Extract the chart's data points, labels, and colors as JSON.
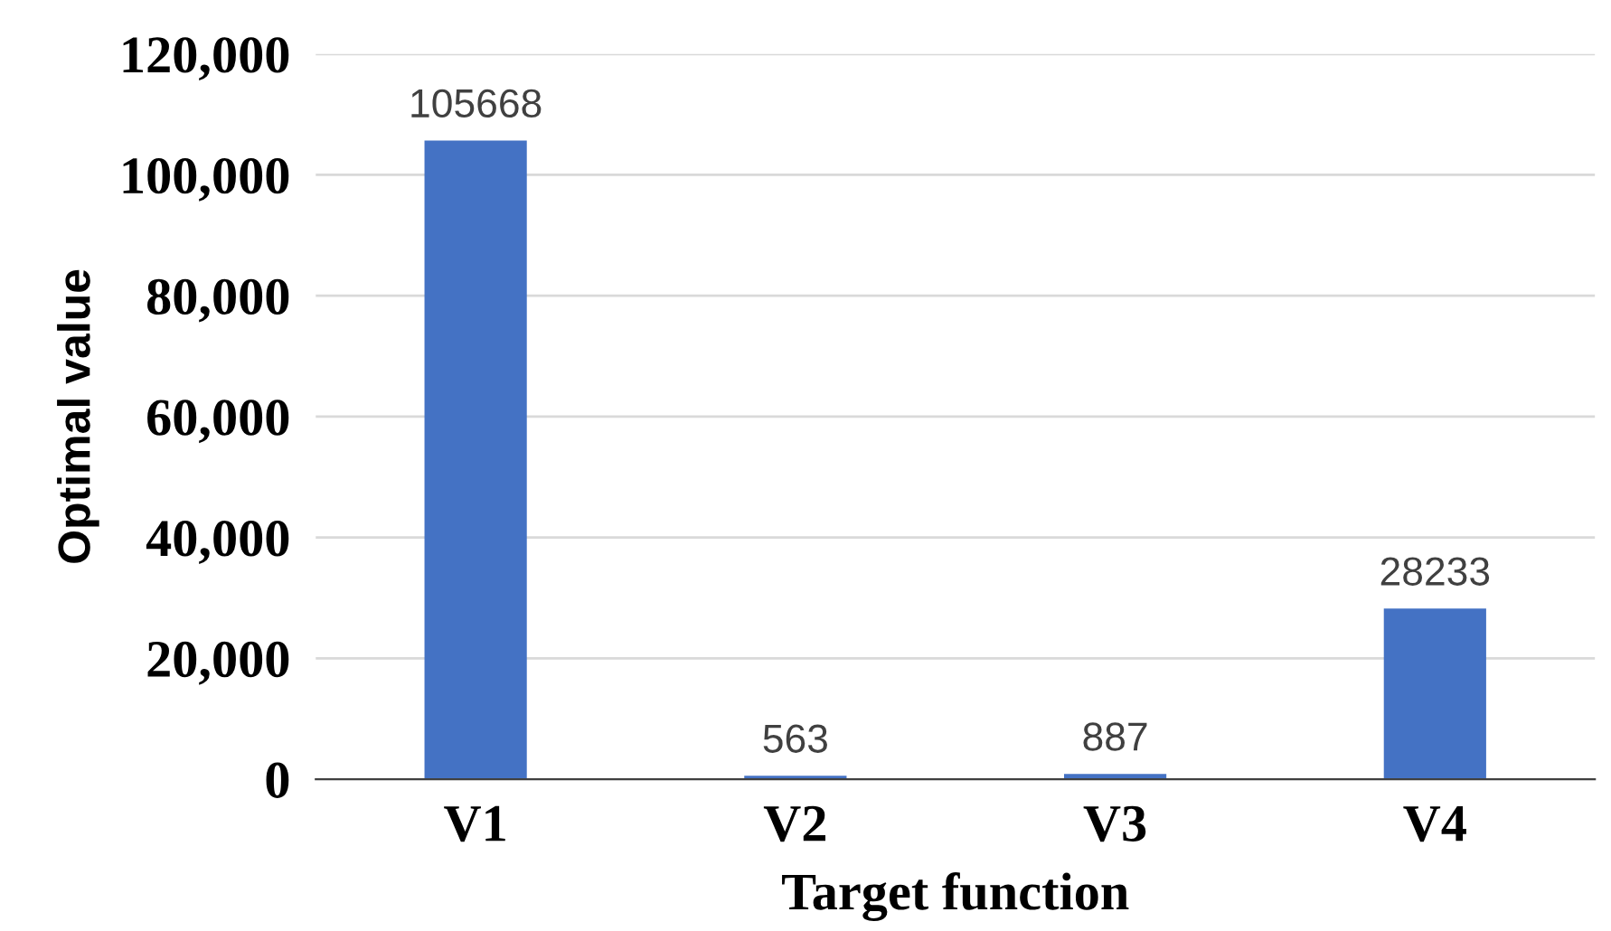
{
  "chart_data": {
    "type": "bar",
    "xlabel": "Target function",
    "ylabel": "Optimal value",
    "categories": [
      "V1",
      "V2",
      "V3",
      "V4"
    ],
    "values": [
      105668,
      563,
      887,
      28233
    ],
    "color": "#4472c4",
    "ylim": [
      0,
      120000
    ],
    "yticks": [
      {
        "value": 0,
        "label": "0"
      },
      {
        "value": 20000,
        "label": "20,000"
      },
      {
        "value": 40000,
        "label": "40,000"
      },
      {
        "value": 60000,
        "label": "60,000"
      },
      {
        "value": 80000,
        "label": "80,000"
      },
      {
        "value": 100000,
        "label": "100,000"
      },
      {
        "value": 120000,
        "label": "120,000"
      }
    ],
    "grid": "y",
    "data_labels": true
  }
}
